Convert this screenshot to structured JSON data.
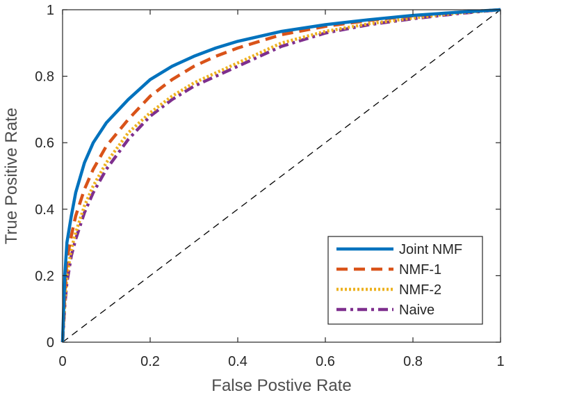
{
  "chart_data": {
    "type": "line",
    "title": "",
    "xlabel": "False Postive Rate",
    "ylabel": "True Positive Rate",
    "xlim": [
      0,
      1
    ],
    "ylim": [
      0,
      1
    ],
    "xticks": [
      "0",
      "0.2",
      "0.4",
      "0.6",
      "0.8",
      "1"
    ],
    "yticks": [
      "0",
      "0.2",
      "0.4",
      "0.6",
      "0.8",
      "1"
    ],
    "grid": false,
    "legend_position": "bottom-right",
    "reference_line": {
      "style": "dashed",
      "color": "#000000",
      "x": [
        0,
        1
      ],
      "y": [
        0,
        1
      ]
    },
    "series": [
      {
        "name": "Joint NMF",
        "color": "#0072BD",
        "style": "solid",
        "x": [
          0,
          0.005,
          0.01,
          0.02,
          0.03,
          0.05,
          0.07,
          0.1,
          0.15,
          0.2,
          0.25,
          0.3,
          0.35,
          0.4,
          0.5,
          0.6,
          0.7,
          0.8,
          0.9,
          1
        ],
        "y": [
          0,
          0.2,
          0.3,
          0.38,
          0.45,
          0.54,
          0.6,
          0.66,
          0.73,
          0.79,
          0.83,
          0.86,
          0.885,
          0.905,
          0.935,
          0.955,
          0.97,
          0.983,
          0.992,
          1
        ]
      },
      {
        "name": "NMF-1",
        "color": "#D95319",
        "style": "dashed",
        "x": [
          0,
          0.005,
          0.01,
          0.02,
          0.03,
          0.05,
          0.07,
          0.1,
          0.15,
          0.2,
          0.25,
          0.3,
          0.35,
          0.4,
          0.5,
          0.6,
          0.7,
          0.8,
          0.9,
          1
        ],
        "y": [
          0,
          0.15,
          0.25,
          0.32,
          0.38,
          0.46,
          0.52,
          0.59,
          0.67,
          0.74,
          0.79,
          0.83,
          0.86,
          0.885,
          0.925,
          0.95,
          0.968,
          0.982,
          0.992,
          1
        ]
      },
      {
        "name": "NMF-2",
        "color": "#EDB120",
        "style": "dotted",
        "x": [
          0,
          0.005,
          0.01,
          0.02,
          0.03,
          0.05,
          0.07,
          0.1,
          0.15,
          0.2,
          0.25,
          0.3,
          0.35,
          0.4,
          0.5,
          0.6,
          0.7,
          0.8,
          0.9,
          1
        ],
        "y": [
          0,
          0.12,
          0.2,
          0.28,
          0.33,
          0.41,
          0.47,
          0.54,
          0.63,
          0.69,
          0.74,
          0.78,
          0.81,
          0.84,
          0.9,
          0.935,
          0.958,
          0.975,
          0.99,
          1
        ]
      },
      {
        "name": "Naive",
        "color": "#7E2F8E",
        "style": "dashdot",
        "x": [
          0,
          0.005,
          0.01,
          0.02,
          0.03,
          0.05,
          0.07,
          0.1,
          0.15,
          0.2,
          0.25,
          0.3,
          0.35,
          0.4,
          0.5,
          0.6,
          0.7,
          0.8,
          0.9,
          1
        ],
        "y": [
          0,
          0.11,
          0.18,
          0.26,
          0.31,
          0.39,
          0.45,
          0.52,
          0.61,
          0.68,
          0.73,
          0.77,
          0.8,
          0.83,
          0.89,
          0.93,
          0.955,
          0.973,
          0.988,
          1
        ]
      }
    ]
  }
}
